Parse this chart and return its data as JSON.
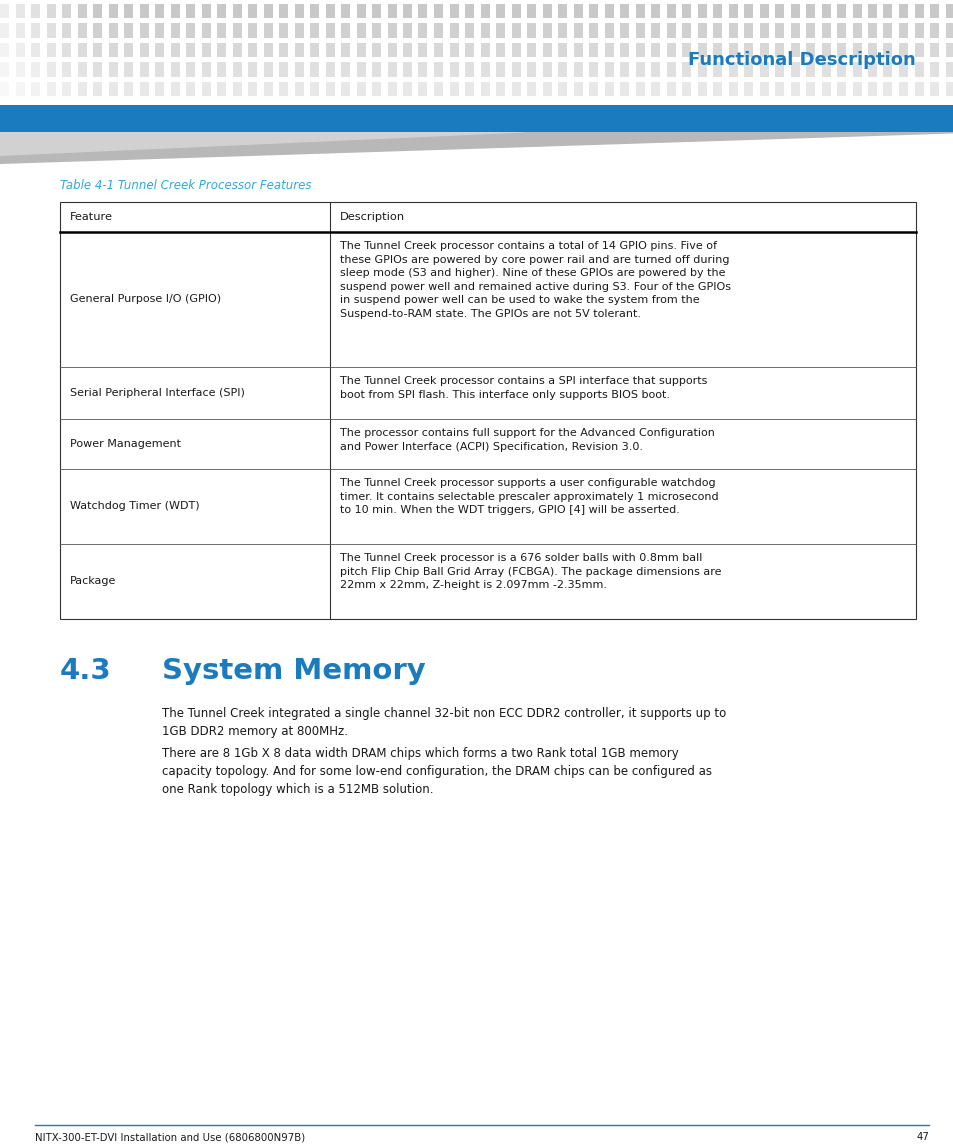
{
  "page_width": 9.54,
  "page_height": 11.45,
  "bg_color": "#ffffff",
  "header_dot_color_dark": "#c8c8c8",
  "header_dot_color_light": "#e0e0e0",
  "header_bar_color": "#1b7bbf",
  "header_triangle_color": "#c0c0c0",
  "header_title": "Functional Description",
  "header_title_color": "#1b7bbf",
  "table_caption": "Table 4-1 Tunnel Creek Processor Features",
  "table_caption_color": "#29abe2",
  "table_header_row": [
    "Feature",
    "Description"
  ],
  "table_rows": [
    [
      "General Purpose I/O (GPIO)",
      "The Tunnel Creek processor contains a total of 14 GPIO pins. Five of\nthese GPIOs are powered by core power rail and are turned off during\nsleep mode (S3 and higher). Nine of these GPIOs are powered by the\nsuspend power well and remained active during S3. Four of the GPIOs\nin suspend power well can be used to wake the system from the\nSuspend-to-RAM state. The GPIOs are not 5V tolerant."
    ],
    [
      "Serial Peripheral Interface (SPI)",
      "The Tunnel Creek processor contains a SPI interface that supports\nboot from SPI flash. This interface only supports BIOS boot."
    ],
    [
      "Power Management",
      "The processor contains full support for the Advanced Configuration\nand Power Interface (ACPI) Specification, Revision 3.0."
    ],
    [
      "Watchdog Timer (WDT)",
      "The Tunnel Creek processor supports a user configurable watchdog\ntimer. It contains selectable prescaler approximately 1 microsecond\nto 10 min. When the WDT triggers, GPIO [4] will be asserted."
    ],
    [
      "Package",
      "The Tunnel Creek processor is a 676 solder balls with 0.8mm ball\npitch Flip Chip Ball Grid Array (FCBGA). The package dimensions are\n22mm x 22mm, Z-height is 2.097mm -2.35mm."
    ]
  ],
  "section_number": "4.3",
  "section_title": "System Memory",
  "section_color": "#1b7bbf",
  "body_para1": "The Tunnel Creek integrated a single channel 32-bit non ECC DDR2 controller, it supports up to\n1GB DDR2 memory at 800MHz.",
  "body_para2": "There are 8 1Gb X 8 data width DRAM chips which forms a two Rank total 1GB memory\ncapacity topology. And for some low-end configuration, the DRAM chips can be configured as\none Rank topology which is a 512MB solution.",
  "footer_text": "NITX-300-ET-DVI Installation and Use (6806800N97B)",
  "footer_page": "47",
  "footer_line_color": "#1b7bbf",
  "text_color": "#1a1a1a"
}
